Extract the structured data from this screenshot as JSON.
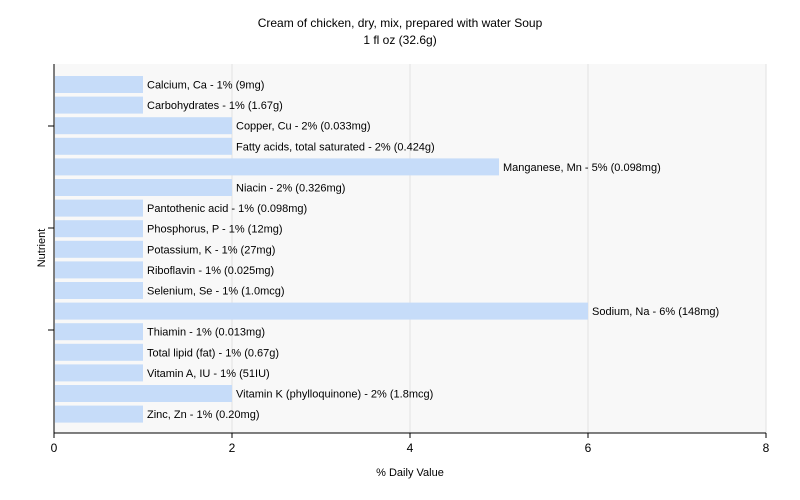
{
  "chart_data": {
    "type": "bar",
    "orientation": "horizontal",
    "title": "Cream of chicken, dry, mix, prepared with water Soup",
    "subtitle": "1 fl oz (32.6g)",
    "xlabel": "% Daily Value",
    "ylabel": "Nutrient",
    "xlim": [
      0,
      8
    ],
    "xticks": [
      "0",
      "2",
      "4",
      "6",
      "8"
    ],
    "grid": true,
    "bar_color": "#c6dcf9",
    "categories": [
      "Calcium, Ca",
      "Carbohydrates",
      "Copper, Cu",
      "Fatty acids, total saturated",
      "Manganese, Mn",
      "Niacin",
      "Pantothenic acid",
      "Phosphorus, P",
      "Potassium, K",
      "Riboflavin",
      "Selenium, Se",
      "Sodium, Na",
      "Thiamin",
      "Total lipid (fat)",
      "Vitamin A, IU",
      "Vitamin K (phylloquinone)",
      "Zinc, Zn"
    ],
    "values": [
      1,
      1,
      2,
      2,
      5,
      2,
      1,
      1,
      1,
      1,
      1,
      6,
      1,
      1,
      1,
      2,
      1
    ],
    "labels": [
      "Calcium, Ca - 1% (9mg)",
      "Carbohydrates - 1% (1.67g)",
      "Copper, Cu - 2% (0.033mg)",
      "Fatty acids, total saturated - 2% (0.424g)",
      "Manganese, Mn - 5% (0.098mg)",
      "Niacin - 2% (0.326mg)",
      "Pantothenic acid - 1% (0.098mg)",
      "Phosphorus, P - 1% (12mg)",
      "Potassium, K - 1% (27mg)",
      "Riboflavin - 1% (0.025mg)",
      "Selenium, Se - 1% (1.0mcg)",
      "Sodium, Na - 6% (148mg)",
      "Thiamin - 1% (0.013mg)",
      "Total lipid (fat) - 1% (0.67g)",
      "Vitamin A, IU - 1% (51IU)",
      "Vitamin K (phylloquinone) - 2% (1.8mcg)",
      "Zinc, Zn - 1% (0.20mg)"
    ]
  }
}
